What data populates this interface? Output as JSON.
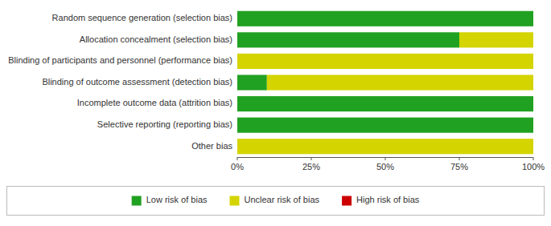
{
  "chart_data": {
    "type": "bar",
    "orientation": "horizontal",
    "stacked": true,
    "categories": [
      "Random sequence generation (selection bias)",
      "Allocation concealment (selection bias)",
      "Blinding of participants and personnel (performance bias)",
      "Blinding of outcome assessment (detection bias)",
      "Incomplete outcome data (attrition bias)",
      "Selective reporting (reporting bias)",
      "Other bias"
    ],
    "series": [
      {
        "name": "Low risk of bias",
        "color": "#21a121",
        "values": [
          100,
          75,
          0,
          10,
          100,
          100,
          0
        ]
      },
      {
        "name": "Unclear risk of bias",
        "color": "#d4d400",
        "values": [
          0,
          25,
          100,
          90,
          0,
          0,
          100
        ]
      },
      {
        "name": "High risk of bias",
        "color": "#cc0000",
        "values": [
          0,
          0,
          0,
          0,
          0,
          0,
          0
        ]
      }
    ],
    "xlim": [
      0,
      100
    ],
    "xticks": [
      {
        "value": 0,
        "label": "0%"
      },
      {
        "value": 25,
        "label": "25%"
      },
      {
        "value": 50,
        "label": "50%"
      },
      {
        "value": 75,
        "label": "75%"
      },
      {
        "value": 100,
        "label": "100%"
      }
    ],
    "grid": false,
    "legend": "bottom"
  }
}
